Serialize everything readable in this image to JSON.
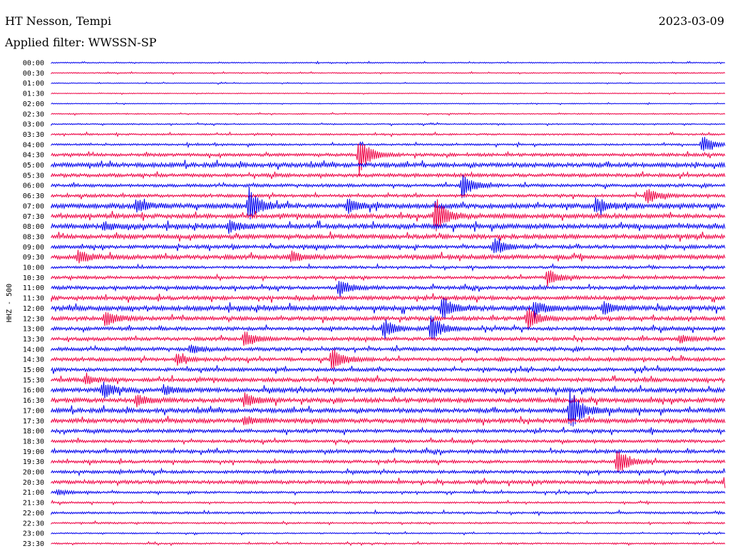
{
  "header": {
    "station": "HT Nesson, Tempi",
    "date": "2023-03-09",
    "filter": "Applied filter: WWSSN-SP"
  },
  "chart_data": {
    "type": "line",
    "title": "HT Nesson, Tempi",
    "ylabel": "HHZ - 500",
    "colors": [
      "#0000ee",
      "#ee0044"
    ],
    "grid": false,
    "trace_minutes": 30,
    "rows": [
      "00:00",
      "00:30",
      "01:00",
      "01:30",
      "02:00",
      "02:30",
      "03:00",
      "03:30",
      "04:00",
      "04:30",
      "05:00",
      "05:30",
      "06:00",
      "06:30",
      "07:00",
      "07:30",
      "08:00",
      "08:30",
      "09:00",
      "09:30",
      "10:00",
      "10:30",
      "11:00",
      "11:30",
      "12:00",
      "12:30",
      "13:00",
      "13:30",
      "14:00",
      "14:30",
      "15:00",
      "15:30",
      "16:00",
      "16:30",
      "17:00",
      "17:30",
      "18:00",
      "18:30",
      "19:00",
      "19:30",
      "20:00",
      "20:30",
      "21:00",
      "21:30",
      "22:00",
      "22:30",
      "23:00",
      "23:30"
    ],
    "noise_level": [
      0.5,
      0.5,
      0.4,
      0.4,
      0.4,
      0.5,
      0.6,
      0.8,
      0.9,
      1.4,
      2.0,
      1.6,
      1.4,
      1.4,
      2.2,
      2.0,
      2.2,
      2.0,
      1.6,
      2.0,
      1.2,
      1.4,
      1.6,
      1.8,
      2.2,
      1.8,
      1.6,
      1.6,
      1.6,
      1.6,
      1.6,
      1.8,
      2.0,
      2.0,
      2.0,
      2.0,
      1.6,
      1.4,
      1.6,
      1.4,
      1.4,
      1.6,
      1.0,
      0.8,
      1.0,
      0.8,
      0.6,
      0.7
    ],
    "events": [
      {
        "row": 8,
        "minute": 29.0,
        "amplitude": 14
      },
      {
        "row": 9,
        "minute": 13.7,
        "amplitude": 26
      },
      {
        "row": 12,
        "minute": 18.3,
        "amplitude": 18
      },
      {
        "row": 13,
        "minute": 26.5,
        "amplitude": 12
      },
      {
        "row": 14,
        "minute": 8.8,
        "amplitude": 26
      },
      {
        "row": 14,
        "minute": 13.2,
        "amplitude": 10
      },
      {
        "row": 14,
        "minute": 24.3,
        "amplitude": 10
      },
      {
        "row": 14,
        "minute": 3.8,
        "amplitude": 10
      },
      {
        "row": 15,
        "minute": 17.1,
        "amplitude": 26
      },
      {
        "row": 16,
        "minute": 7.9,
        "amplitude": 8
      },
      {
        "row": 16,
        "minute": 2.3,
        "amplitude": 6
      },
      {
        "row": 18,
        "minute": 19.7,
        "amplitude": 12
      },
      {
        "row": 19,
        "minute": 1.2,
        "amplitude": 10
      },
      {
        "row": 19,
        "minute": 10.7,
        "amplitude": 8
      },
      {
        "row": 21,
        "minute": 22.1,
        "amplitude": 12
      },
      {
        "row": 22,
        "minute": 12.8,
        "amplitude": 12
      },
      {
        "row": 24,
        "minute": 17.4,
        "amplitude": 16
      },
      {
        "row": 24,
        "minute": 21.5,
        "amplitude": 10
      },
      {
        "row": 24,
        "minute": 24.6,
        "amplitude": 10
      },
      {
        "row": 25,
        "minute": 2.4,
        "amplitude": 12
      },
      {
        "row": 25,
        "minute": 21.2,
        "amplitude": 16
      },
      {
        "row": 26,
        "minute": 14.8,
        "amplitude": 14
      },
      {
        "row": 26,
        "minute": 16.9,
        "amplitude": 20
      },
      {
        "row": 27,
        "minute": 8.6,
        "amplitude": 12
      },
      {
        "row": 27,
        "minute": 28.0,
        "amplitude": 6
      },
      {
        "row": 28,
        "minute": 6.2,
        "amplitude": 6
      },
      {
        "row": 29,
        "minute": 5.6,
        "amplitude": 8
      },
      {
        "row": 29,
        "minute": 12.5,
        "amplitude": 18
      },
      {
        "row": 31,
        "minute": 1.5,
        "amplitude": 6
      },
      {
        "row": 32,
        "minute": 2.3,
        "amplitude": 12
      },
      {
        "row": 32,
        "minute": 5.0,
        "amplitude": 6
      },
      {
        "row": 33,
        "minute": 3.8,
        "amplitude": 8
      },
      {
        "row": 33,
        "minute": 8.6,
        "amplitude": 10
      },
      {
        "row": 34,
        "minute": 23.1,
        "amplitude": 30
      },
      {
        "row": 35,
        "minute": 8.6,
        "amplitude": 6
      },
      {
        "row": 39,
        "minute": 25.2,
        "amplitude": 22
      },
      {
        "row": 41,
        "minute": 30.0,
        "amplitude": 8
      },
      {
        "row": 42,
        "minute": 0.3,
        "amplitude": 4
      }
    ]
  }
}
